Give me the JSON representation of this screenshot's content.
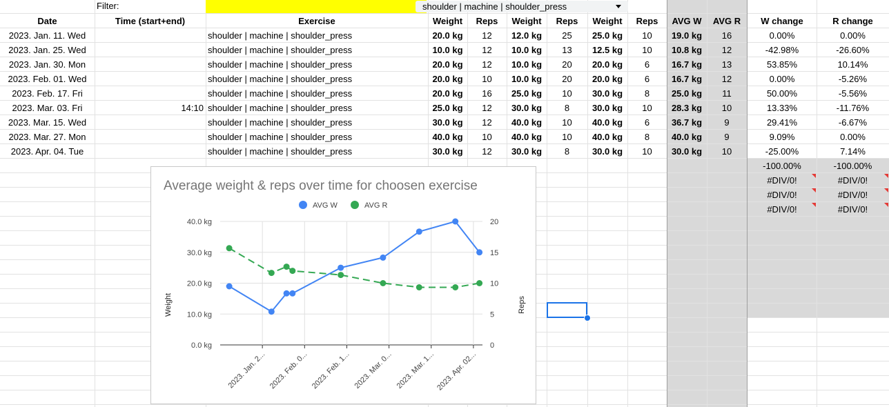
{
  "filter": {
    "label": "Filter:",
    "value": "shoulder | machine | shoulder_press"
  },
  "headers": {
    "date": "Date",
    "time": "Time (start+end)",
    "exercise": "Exercise",
    "weight1": "Weight",
    "reps1": "Reps",
    "weight2": "Weight",
    "reps2": "Reps",
    "weight3": "Weight",
    "reps3": "Reps",
    "avg_w": "AVG W",
    "avg_r": "AVG R",
    "w_change": "W change",
    "r_change": "R change"
  },
  "rows": [
    {
      "date": "2023. Jan. 11. Wed",
      "time": "",
      "exercise": "shoulder | machine | shoulder_press",
      "w1": "20.0 kg",
      "r1": "12",
      "w2": "12.0 kg",
      "r2": "25",
      "w3": "25.0 kg",
      "r3": "10",
      "avg_w": "19.0 kg",
      "avg_r": "16",
      "w_change": "0.00%",
      "r_change": "0.00%"
    },
    {
      "date": "2023. Jan. 25. Wed",
      "time": "",
      "exercise": "shoulder | machine | shoulder_press",
      "w1": "10.0 kg",
      "r1": "12",
      "w2": "10.0 kg",
      "r2": "13",
      "w3": "12.5 kg",
      "r3": "10",
      "avg_w": "10.8 kg",
      "avg_r": "12",
      "w_change": "-42.98%",
      "r_change": "-26.60%"
    },
    {
      "date": "2023. Jan. 30. Mon",
      "time": "",
      "exercise": "shoulder | machine | shoulder_press",
      "w1": "20.0 kg",
      "r1": "12",
      "w2": "10.0 kg",
      "r2": "20",
      "w3": "20.0 kg",
      "r3": "6",
      "avg_w": "16.7 kg",
      "avg_r": "13",
      "w_change": "53.85%",
      "r_change": "10.14%"
    },
    {
      "date": "2023. Feb. 01. Wed",
      "time": "",
      "exercise": "shoulder | machine | shoulder_press",
      "w1": "20.0 kg",
      "r1": "10",
      "w2": "10.0 kg",
      "r2": "20",
      "w3": "20.0 kg",
      "r3": "6",
      "avg_w": "16.7 kg",
      "avg_r": "12",
      "w_change": "0.00%",
      "r_change": "-5.26%"
    },
    {
      "date": "2023. Feb. 17. Fri",
      "time": "",
      "exercise": "shoulder | machine | shoulder_press",
      "w1": "20.0 kg",
      "r1": "16",
      "w2": "25.0 kg",
      "r2": "10",
      "w3": "30.0 kg",
      "r3": "8",
      "avg_w": "25.0 kg",
      "avg_r": "11",
      "w_change": "50.00%",
      "r_change": "-5.56%"
    },
    {
      "date": "2023. Mar. 03. Fri",
      "time": "14:10",
      "exercise": "shoulder | machine | shoulder_press",
      "w1": "25.0 kg",
      "r1": "12",
      "w2": "30.0 kg",
      "r2": "8",
      "w3": "30.0 kg",
      "r3": "10",
      "avg_w": "28.3 kg",
      "avg_r": "10",
      "w_change": "13.33%",
      "r_change": "-11.76%"
    },
    {
      "date": "2023. Mar. 15. Wed",
      "time": "",
      "exercise": "shoulder | machine | shoulder_press",
      "w1": "30.0 kg",
      "r1": "12",
      "w2": "40.0 kg",
      "r2": "10",
      "w3": "40.0 kg",
      "r3": "6",
      "avg_w": "36.7 kg",
      "avg_r": "9",
      "w_change": "29.41%",
      "r_change": "-6.67%"
    },
    {
      "date": "2023. Mar. 27. Mon",
      "time": "",
      "exercise": "shoulder | machine | shoulder_press",
      "w1": "40.0 kg",
      "r1": "10",
      "w2": "40.0 kg",
      "r2": "10",
      "w3": "40.0 kg",
      "r3": "8",
      "avg_w": "40.0 kg",
      "avg_r": "9",
      "w_change": "9.09%",
      "r_change": "0.00%"
    },
    {
      "date": "2023. Apr. 04. Tue",
      "time": "",
      "exercise": "shoulder | machine | shoulder_press",
      "w1": "30.0 kg",
      "r1": "12",
      "w2": "30.0 kg",
      "r2": "8",
      "w3": "30.0 kg",
      "r3": "10",
      "avg_w": "30.0 kg",
      "avg_r": "10",
      "w_change": "-25.00%",
      "r_change": "7.14%"
    }
  ],
  "extra_changes": [
    {
      "w": "-100.00%",
      "r": "-100.00%",
      "flag": false
    },
    {
      "w": "#DIV/0!",
      "r": "#DIV/0!",
      "flag": true
    },
    {
      "w": "#DIV/0!",
      "r": "#DIV/0!",
      "flag": true
    },
    {
      "w": "#DIV/0!",
      "r": "#DIV/0!",
      "flag": true
    }
  ],
  "colors": {
    "avg_w": "#4285f4",
    "avg_r": "#34a853",
    "gray_band": "#d9d9d9",
    "filter_bg": "#ffff00",
    "selection": "#1a73e8",
    "error_flag": "#e53935"
  },
  "chart_data": {
    "type": "line",
    "title": "Average weight & reps over time for choosen exercise",
    "legend_position": "top",
    "x": [
      "2023-01-11",
      "2023-01-25",
      "2023-01-30",
      "2023-02-01",
      "2023-02-17",
      "2023-03-03",
      "2023-03-15",
      "2023-03-27",
      "2023-04-04"
    ],
    "x_tick_labels": [
      "2023. Jan. 2...",
      "2023. Feb. 0...",
      "2023. Feb. 1...",
      "2023. Mar. 0...",
      "2023. Mar. 1...",
      "2023. Apr. 02..."
    ],
    "x_tick_dates": [
      "2023-01-22",
      "2023-02-05",
      "2023-02-19",
      "2023-03-05",
      "2023-03-19",
      "2023-04-02"
    ],
    "series": [
      {
        "name": "AVG W",
        "axis": "left",
        "style": "solid",
        "values": [
          19.0,
          10.8,
          16.7,
          16.7,
          25.0,
          28.3,
          36.7,
          40.0,
          30.0
        ]
      },
      {
        "name": "AVG R",
        "axis": "right",
        "style": "dashed",
        "values": [
          15.67,
          11.67,
          12.67,
          12.0,
          11.33,
          10.0,
          9.33,
          9.33,
          10.0
        ]
      }
    ],
    "ylabel": "Weight",
    "ylabel_right": "Reps",
    "ylim": [
      0,
      40
    ],
    "ylim_right": [
      0,
      20
    ],
    "y_ticks": [
      "0.0 kg",
      "10.0 kg",
      "20.0 kg",
      "30.0 kg",
      "40.0 kg"
    ],
    "y_ticks_right": [
      "0",
      "5",
      "10",
      "15",
      "20"
    ],
    "grid": true
  }
}
